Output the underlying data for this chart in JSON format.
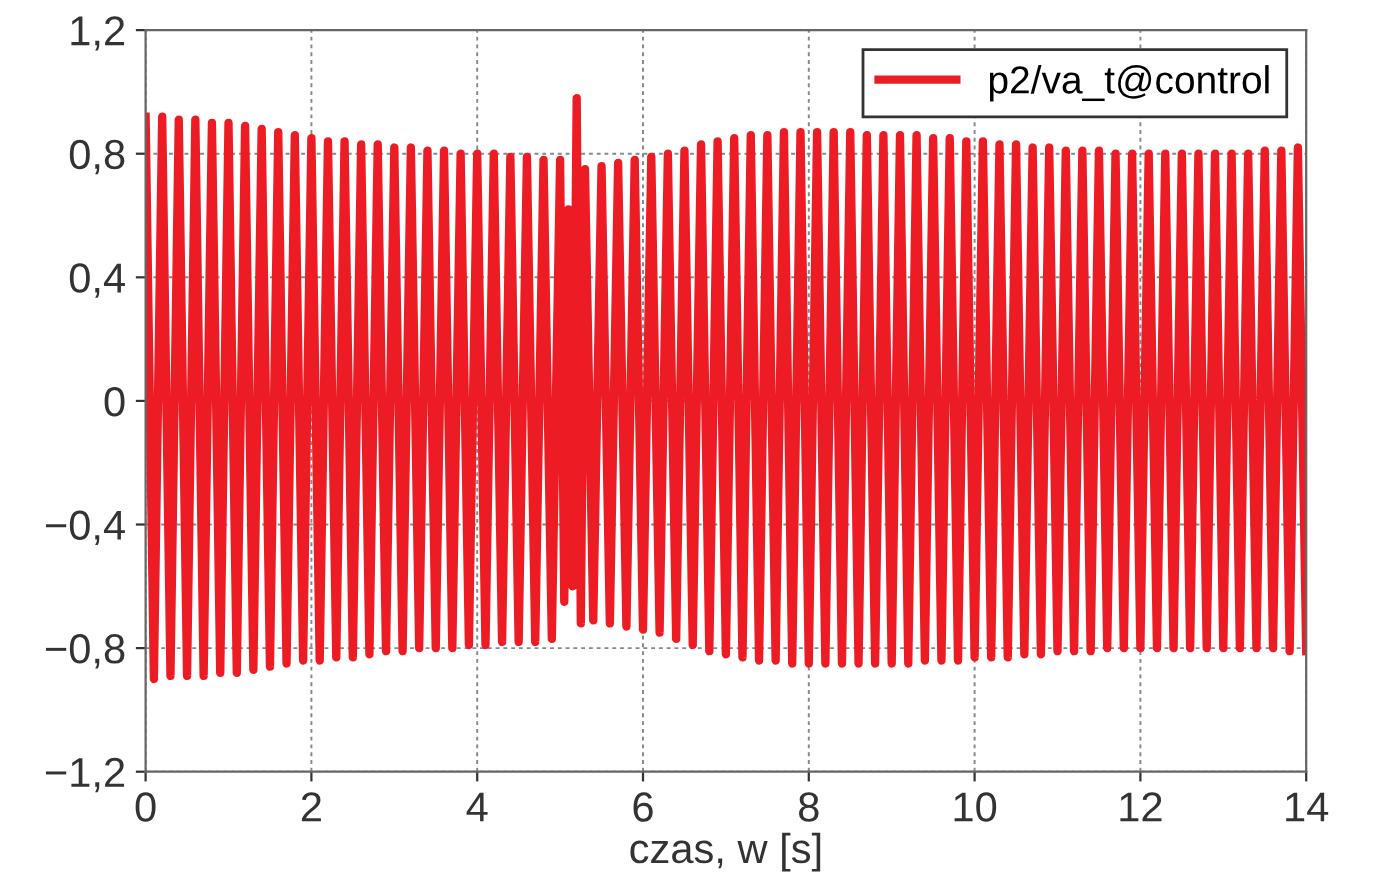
{
  "chart_data": {
    "type": "line",
    "xlabel": "czas, w [s]",
    "x": [
      0,
      0.1,
      0.2,
      0.3,
      0.4,
      0.5,
      0.6,
      0.7,
      0.8,
      0.9,
      1.0,
      1.1,
      1.2,
      1.3,
      1.4,
      1.5,
      1.6,
      1.7,
      1.8,
      1.9,
      2.0,
      2.1,
      2.2,
      2.3,
      2.4,
      2.5,
      2.6,
      2.7,
      2.8,
      2.9,
      3.0,
      3.1,
      3.2,
      3.3,
      3.4,
      3.5,
      3.6,
      3.7,
      3.8,
      3.9,
      4.0,
      4.1,
      4.2,
      4.3,
      4.4,
      4.5,
      4.6,
      4.7,
      4.8,
      4.9,
      5.0,
      5.05,
      5.1,
      5.15,
      5.2,
      5.25,
      5.3,
      5.4,
      5.5,
      5.6,
      5.7,
      5.8,
      5.9,
      6.0,
      6.1,
      6.2,
      6.3,
      6.4,
      6.5,
      6.6,
      6.7,
      6.8,
      6.9,
      7.0,
      7.1,
      7.2,
      7.3,
      7.4,
      7.5,
      7.6,
      7.7,
      7.8,
      7.9,
      8.0,
      8.1,
      8.2,
      8.3,
      8.4,
      8.5,
      8.6,
      8.7,
      8.8,
      8.9,
      9.0,
      9.1,
      9.2,
      9.3,
      9.4,
      9.5,
      9.6,
      9.7,
      9.8,
      9.9,
      10.0,
      10.1,
      10.2,
      10.3,
      10.4,
      10.5,
      10.6,
      10.7,
      10.8,
      10.9,
      11.0,
      11.1,
      11.2,
      11.3,
      11.4,
      11.5,
      11.6,
      11.7,
      11.8,
      11.9,
      12.0,
      12.1,
      12.2,
      12.3,
      12.4,
      12.5,
      12.6,
      12.7,
      12.8,
      12.9,
      13.0,
      13.1,
      13.2,
      13.3,
      13.4,
      13.5,
      13.6,
      13.7,
      13.8,
      13.9,
      14.0
    ],
    "series": [
      {
        "name": "p2/va_t@control",
        "color": "#ed1c24",
        "values": [
          0.92,
          -0.9,
          0.92,
          -0.89,
          0.91,
          -0.89,
          0.91,
          -0.89,
          0.9,
          -0.88,
          0.9,
          -0.88,
          0.89,
          -0.87,
          0.88,
          -0.86,
          0.87,
          -0.85,
          0.86,
          -0.84,
          0.85,
          -0.84,
          0.84,
          -0.83,
          0.84,
          -0.83,
          0.83,
          -0.82,
          0.83,
          -0.81,
          0.82,
          -0.81,
          0.82,
          -0.8,
          0.81,
          -0.8,
          0.81,
          -0.8,
          0.8,
          -0.79,
          0.8,
          -0.79,
          0.8,
          -0.78,
          0.79,
          -0.78,
          0.79,
          -0.78,
          0.78,
          -0.77,
          0.78,
          -0.65,
          0.62,
          -0.6,
          0.98,
          -0.72,
          0.75,
          -0.71,
          0.76,
          -0.72,
          0.77,
          -0.73,
          0.78,
          -0.74,
          0.79,
          -0.75,
          0.8,
          -0.77,
          0.81,
          -0.79,
          0.83,
          -0.81,
          0.84,
          -0.82,
          0.85,
          -0.83,
          0.86,
          -0.84,
          0.86,
          -0.84,
          0.87,
          -0.85,
          0.87,
          -0.85,
          0.87,
          -0.85,
          0.87,
          -0.85,
          0.87,
          -0.85,
          0.86,
          -0.85,
          0.86,
          -0.85,
          0.86,
          -0.85,
          0.86,
          -0.84,
          0.85,
          -0.84,
          0.85,
          -0.84,
          0.84,
          -0.83,
          0.84,
          -0.83,
          0.83,
          -0.83,
          0.83,
          -0.82,
          0.82,
          -0.82,
          0.82,
          -0.81,
          0.81,
          -0.81,
          0.81,
          -0.81,
          0.81,
          -0.8,
          0.8,
          -0.8,
          0.8,
          -0.8,
          0.8,
          -0.8,
          0.8,
          -0.8,
          0.8,
          -0.8,
          0.8,
          -0.8,
          0.8,
          -0.8,
          0.8,
          -0.8,
          0.8,
          -0.8,
          0.81,
          -0.8,
          0.81,
          -0.81,
          0.82,
          -0.81
        ]
      }
    ],
    "xlim": [
      0,
      14
    ],
    "xticks": [
      0,
      2,
      4,
      6,
      8,
      10,
      12,
      14
    ],
    "ylim": [
      -1.2,
      1.2
    ],
    "yticks": [
      {
        "value": -1.2,
        "label": "−1,2"
      },
      {
        "value": -0.8,
        "label": "−0,8"
      },
      {
        "value": -0.4,
        "label": "−0,4"
      },
      0,
      {
        "value": 0.4,
        "label": "0,4"
      },
      {
        "value": 0.8,
        "label": "0,8"
      },
      {
        "value": 1.2,
        "label": "1,2"
      }
    ],
    "grid": true,
    "legend": "top right",
    "marker": "none",
    "line_style": "solid"
  }
}
